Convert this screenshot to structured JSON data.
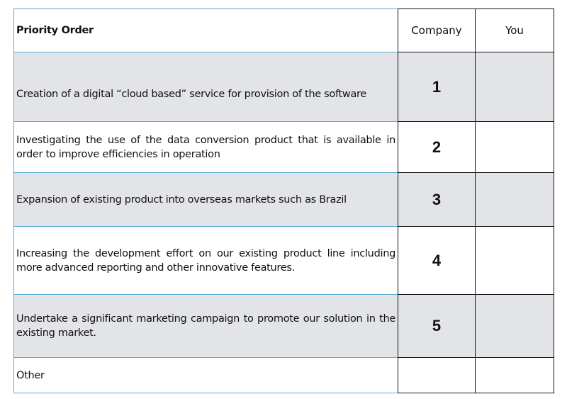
{
  "header": {
    "priority": "Priority Order",
    "company": "Company",
    "you": "You"
  },
  "rows": [
    {
      "text": "Creation of a digital “cloud based” service for provision of the software",
      "company": "1",
      "you": ""
    },
    {
      "text": "Investigating the use of the data conversion product that is available in order to improve efficiencies in operation",
      "company": "2",
      "you": ""
    },
    {
      "text": "Expansion of existing product into overseas markets such as Brazil",
      "company": "3",
      "you": ""
    },
    {
      "text": "Increasing the development effort on our existing product line including more advanced reporting and other innovative features.",
      "company": "4",
      "you": ""
    },
    {
      "text": "Undertake a significant marketing campaign to promote our solution in the existing market.",
      "company": "5",
      "you": ""
    },
    {
      "text": "Other",
      "company": "",
      "you": ""
    }
  ],
  "colors": {
    "text_border": "#5aa9d6",
    "shaded_row": "#e3e4e7"
  }
}
